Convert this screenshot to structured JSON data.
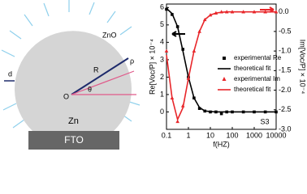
{
  "diagram": {
    "zno": "ZnO",
    "r": "R",
    "rho": "ρ",
    "origin": "O",
    "theta": "θ",
    "d": "d",
    "zn": "Zn",
    "fto": "FTO"
  },
  "chart_data": {
    "type": "line",
    "x_scale": "log",
    "xlabel": "f(HZ)",
    "ylabel": "Re[Voc/P] × 10⁻⁴",
    "y2label": "Im[Voc/P] × 10⁻⁴",
    "annotation": "S3",
    "legend_position": "right",
    "x": [
      0.1,
      0.18,
      0.32,
      0.56,
      1,
      1.8,
      3.2,
      5.6,
      10,
      18,
      32,
      56,
      100,
      320,
      1000,
      3200,
      10000
    ],
    "xlim": [
      0.1,
      10000
    ],
    "xticks": [
      0.1,
      1,
      10,
      100,
      1000,
      10000
    ],
    "ylim": [
      -1,
      6.2
    ],
    "yticks": [
      0,
      1,
      2,
      3,
      4,
      5,
      6
    ],
    "y2lim": [
      -3,
      0.2
    ],
    "y2ticks": [
      {
        "value": 0,
        "label": "0.0"
      },
      -0.5,
      {
        "value": -1,
        "label": "-1.0"
      },
      -1.5,
      {
        "value": -2,
        "label": "-2.0"
      },
      -2.5,
      {
        "value": -3,
        "label": "-3.0"
      }
    ],
    "series": [
      {
        "name": "experimental Re",
        "color": "#000000",
        "marker": "square",
        "values": [
          5.9,
          5.6,
          4.9,
          3.6,
          2.0,
          0.8,
          0.2,
          0.05,
          0,
          0,
          -0.1,
          0,
          0,
          0,
          0,
          0,
          0
        ]
      },
      {
        "name": "theoretical fit",
        "color": "#000000",
        "values": [
          5.95,
          5.65,
          4.9,
          3.5,
          2.0,
          0.8,
          0.25,
          0.06,
          0.02,
          0,
          0,
          0,
          0,
          0,
          0,
          0,
          0
        ]
      },
      {
        "name": "experimental Im",
        "color": "#e8262a",
        "marker": "triangle",
        "axis": "y2",
        "values": [
          -1.0,
          -2.2,
          -2.8,
          -2.4,
          -1.7,
          -1.0,
          -0.5,
          -0.2,
          -0.08,
          -0.03,
          0,
          0,
          0,
          0,
          0,
          0,
          0
        ]
      },
      {
        "name": "theoretical fit",
        "color": "#e8262a",
        "axis": "y2",
        "values": [
          -1.1,
          -2.2,
          -2.75,
          -2.45,
          -1.7,
          -1.0,
          -0.5,
          -0.2,
          -0.08,
          -0.03,
          -0.01,
          0,
          0,
          0,
          0,
          0,
          0
        ]
      }
    ]
  }
}
